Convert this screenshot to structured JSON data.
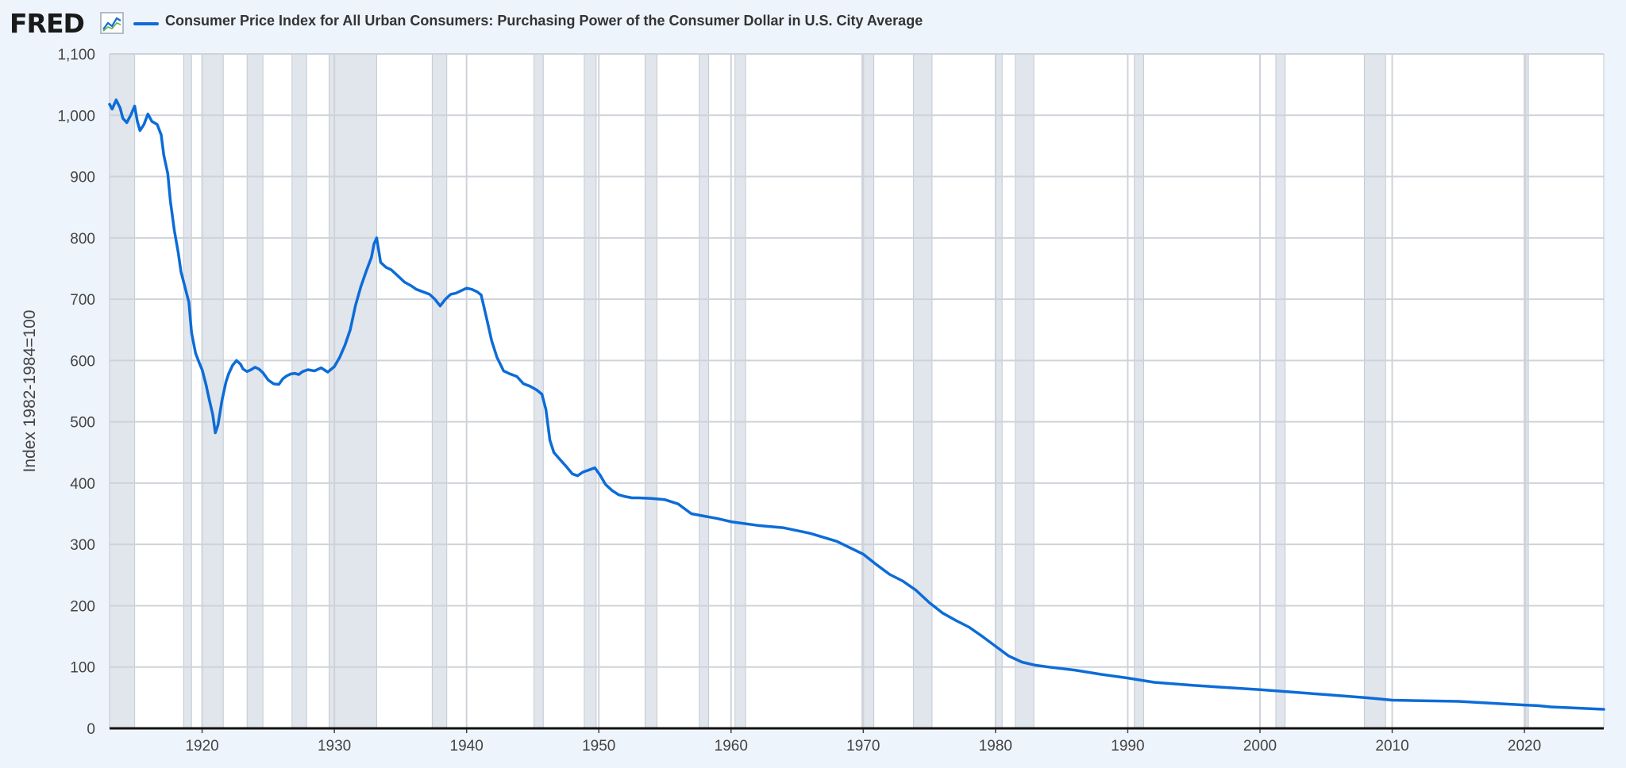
{
  "header": {
    "logo_text": "FRED",
    "logo_icon": "line-chart-icon",
    "series_title": "Consumer Price Index for All Urban Consumers: Purchasing Power of the Consumer Dollar in U.S. City Average"
  },
  "colors": {
    "series": "#0c6cd8",
    "recession": "#e1e5ec",
    "grid": "#cfd3d9",
    "background": "#eef4fc"
  },
  "chart_data": {
    "type": "line",
    "ylabel": "Index 1982-1984=100",
    "ylim": [
      0,
      1100
    ],
    "xlim": [
      1913.0,
      2026.0
    ],
    "y_ticks": [
      {
        "value": 0,
        "label": "0"
      },
      {
        "value": 100,
        "label": "100"
      },
      {
        "value": 200,
        "label": "200"
      },
      {
        "value": 300,
        "label": "300"
      },
      {
        "value": 400,
        "label": "400"
      },
      {
        "value": 500,
        "label": "500"
      },
      {
        "value": 600,
        "label": "600"
      },
      {
        "value": 700,
        "label": "700"
      },
      {
        "value": 800,
        "label": "800"
      },
      {
        "value": 900,
        "label": "900"
      },
      {
        "value": 1000,
        "label": "1,000"
      },
      {
        "value": 1100,
        "label": "1,100"
      }
    ],
    "x_ticks": [
      {
        "value": 1920,
        "label": "1920"
      },
      {
        "value": 1930,
        "label": "1930"
      },
      {
        "value": 1940,
        "label": "1940"
      },
      {
        "value": 1950,
        "label": "1950"
      },
      {
        "value": 1960,
        "label": "1960"
      },
      {
        "value": 1970,
        "label": "1970"
      },
      {
        "value": 1980,
        "label": "1980"
      },
      {
        "value": 1990,
        "label": "1990"
      },
      {
        "value": 2000,
        "label": "2000"
      },
      {
        "value": 2010,
        "label": "2010"
      },
      {
        "value": 2020,
        "label": "2020"
      }
    ],
    "grid": true,
    "recessions": [
      [
        1913.0,
        1914.9
      ],
      [
        1918.6,
        1919.2
      ],
      [
        1920.0,
        1921.6
      ],
      [
        1923.4,
        1924.6
      ],
      [
        1926.8,
        1927.9
      ],
      [
        1929.6,
        1933.2
      ],
      [
        1937.4,
        1938.5
      ],
      [
        1945.1,
        1945.8
      ],
      [
        1948.9,
        1949.8
      ],
      [
        1953.5,
        1954.4
      ],
      [
        1957.6,
        1958.3
      ],
      [
        1960.3,
        1961.1
      ],
      [
        1969.9,
        1970.8
      ],
      [
        1973.8,
        1975.2
      ],
      [
        1980.0,
        1980.5
      ],
      [
        1981.5,
        1982.9
      ],
      [
        1990.5,
        1991.2
      ],
      [
        2001.2,
        2001.9
      ],
      [
        2007.9,
        2009.5
      ],
      [
        2020.1,
        2020.3
      ]
    ],
    "series": [
      {
        "x": [
          1913.0,
          1913.2,
          1913.5,
          1913.8,
          1914.0,
          1914.3,
          1914.6,
          1914.9,
          1915.1,
          1915.3,
          1915.6,
          1915.9,
          1916.2,
          1916.6,
          1916.9,
          1917.1,
          1917.4,
          1917.6,
          1917.9,
          1918.2,
          1918.4,
          1918.7,
          1919.0,
          1919.2,
          1919.5,
          1919.8,
          1920.0,
          1920.3,
          1920.5,
          1920.8,
          1921.0,
          1921.2,
          1921.5,
          1921.8,
          1922.0,
          1922.3,
          1922.6,
          1922.9,
          1923.1,
          1923.4,
          1923.7,
          1924.0,
          1924.3,
          1924.6,
          1925.0,
          1925.4,
          1925.8,
          1926.1,
          1926.4,
          1926.7,
          1927.0,
          1927.3,
          1927.6,
          1928.0,
          1928.5,
          1929.0,
          1929.5,
          1930.0,
          1930.4,
          1930.8,
          1931.2,
          1931.6,
          1932.0,
          1932.4,
          1932.8,
          1933.0,
          1933.2,
          1933.5,
          1933.9,
          1934.3,
          1934.8,
          1935.3,
          1935.8,
          1936.2,
          1936.7,
          1937.2,
          1937.6,
          1938.0,
          1938.4,
          1938.8,
          1939.2,
          1939.6,
          1940.0,
          1940.4,
          1940.8,
          1941.1,
          1941.5,
          1941.9,
          1942.3,
          1942.8,
          1943.3,
          1943.8,
          1944.3,
          1944.8,
          1945.3,
          1945.7,
          1946.0,
          1946.3,
          1946.6,
          1947.0,
          1947.5,
          1948.0,
          1948.4,
          1948.8,
          1949.2,
          1949.7,
          1950.1,
          1950.5,
          1951.0,
          1951.5,
          1952.0,
          1952.5,
          1953.0,
          1954.0,
          1955.0,
          1956.0,
          1956.5,
          1957.0,
          1958.0,
          1959.0,
          1960.0,
          1962.0,
          1964.0,
          1966.0,
          1968.0,
          1970.0,
          1971.0,
          1972.0,
          1973.0,
          1974.0,
          1975.0,
          1976.0,
          1977.0,
          1978.0,
          1979.0,
          1980.0,
          1981.0,
          1982.0,
          1983.0,
          1984.0,
          1986.0,
          1988.0,
          1990.0,
          1992.0,
          1995.0,
          2000.0,
          2005.0,
          2008.0,
          2009.0,
          2010.0,
          2015.0,
          2020.0,
          2021.0,
          2022.0,
          2023.0,
          2024.0,
          2025.0,
          2026.0
        ],
        "y": [
          1018,
          1010,
          1025,
          1012,
          995,
          988,
          1000,
          1015,
          990,
          975,
          985,
          1002,
          990,
          985,
          968,
          935,
          905,
          860,
          812,
          775,
          745,
          720,
          695,
          645,
          612,
          595,
          585,
          560,
          540,
          512,
          482,
          495,
          535,
          565,
          578,
          592,
          600,
          594,
          586,
          582,
          585,
          589,
          586,
          580,
          568,
          562,
          561,
          570,
          575,
          578,
          579,
          577,
          582,
          585,
          583,
          588,
          581,
          590,
          605,
          625,
          650,
          690,
          720,
          745,
          768,
          790,
          800,
          760,
          752,
          748,
          738,
          728,
          722,
          716,
          712,
          708,
          700,
          689,
          700,
          708,
          710,
          714,
          718,
          716,
          712,
          707,
          670,
          632,
          605,
          583,
          578,
          574,
          562,
          558,
          552,
          545,
          520,
          470,
          450,
          440,
          428,
          415,
          412,
          418,
          421,
          425,
          413,
          398,
          388,
          381,
          378,
          376,
          376,
          375,
          373,
          366,
          358,
          350,
          346,
          342,
          337,
          331,
          327,
          318,
          305,
          284,
          267,
          251,
          240,
          225,
          205,
          188,
          176,
          165,
          150,
          134,
          118,
          108,
          103,
          100,
          95,
          88,
          82,
          75,
          70,
          63,
          55,
          50,
          48,
          46,
          44,
          38,
          37,
          35,
          34,
          33,
          32,
          31
        ],
        "color": "#0c6cd8"
      }
    ]
  }
}
